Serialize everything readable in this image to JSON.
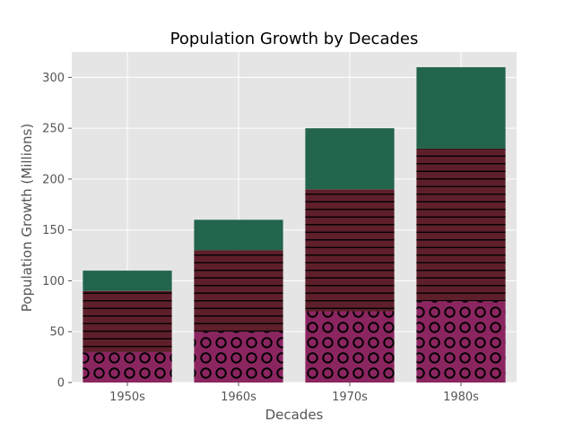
{
  "chart_data": {
    "type": "bar",
    "stacked": true,
    "title": "Population Growth by Decades",
    "xlabel": "Decades",
    "ylabel": "Population Growth (Millions)",
    "categories": [
      "1950s",
      "1960s",
      "1970s",
      "1980s"
    ],
    "ylim": [
      0,
      325
    ],
    "yticks": [
      0,
      50,
      100,
      150,
      200,
      250,
      300
    ],
    "grid": true,
    "background_color": "#e5e5e5",
    "grid_color": "#ffffff",
    "series": [
      {
        "values": [
          30,
          50,
          70,
          80
        ],
        "color": "#8b2560",
        "hatch": "circles"
      },
      {
        "values": [
          60,
          80,
          120,
          150
        ],
        "color": "#5e1f2b",
        "hatch": "horizontal-lines"
      },
      {
        "values": [
          20,
          30,
          60,
          80
        ],
        "color": "#22654c",
        "hatch": "none"
      }
    ]
  }
}
